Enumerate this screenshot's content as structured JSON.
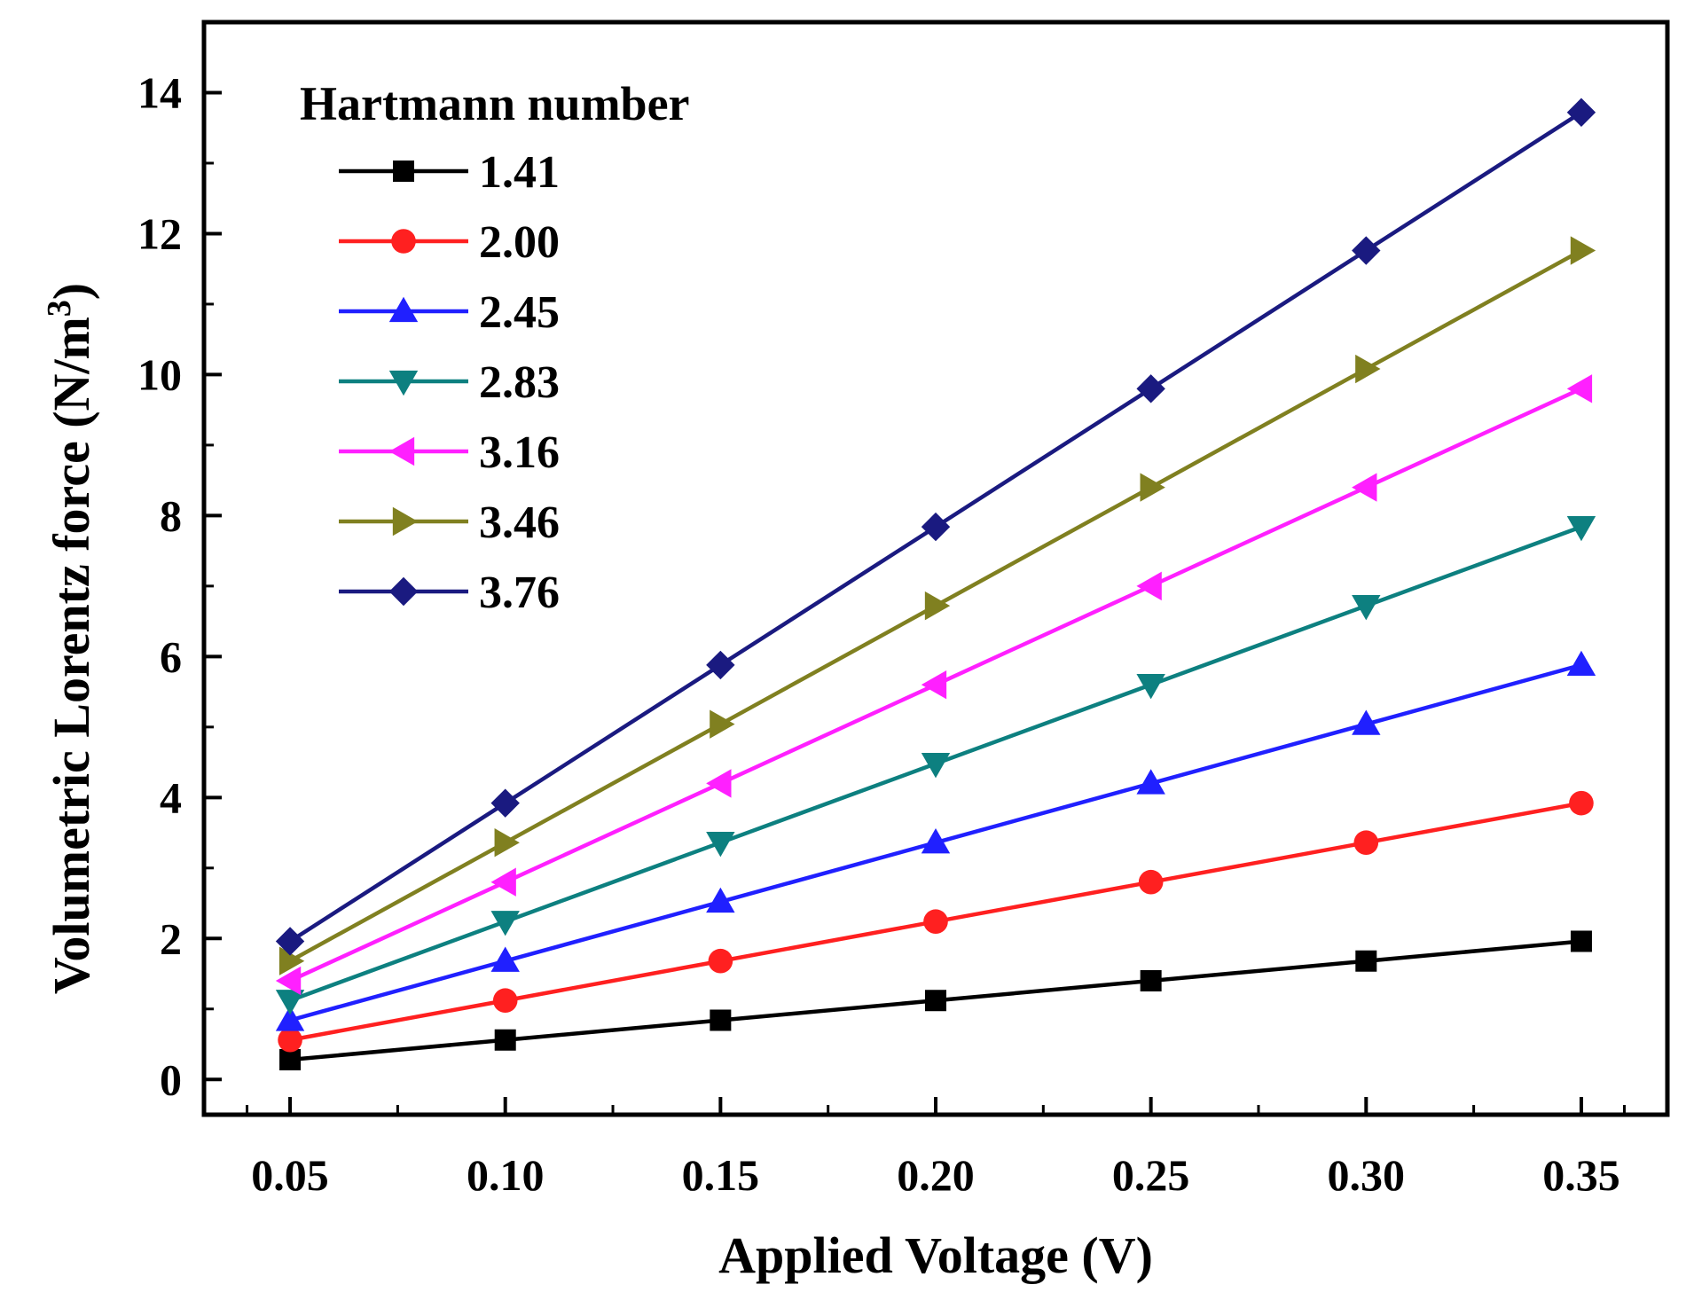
{
  "chart_data": {
    "type": "line",
    "title": "",
    "xlabel": "Applied Voltage (V)",
    "ylabel": "Volumetric Lorentz force (N/m",
    "ylabel_superscript": "3",
    "ylabel_suffix": ")",
    "xlim": [
      0.03,
      0.37
    ],
    "ylim": [
      -0.5,
      15
    ],
    "x_ticks": [
      "0.05",
      "0.10",
      "0.15",
      "0.20",
      "0.25",
      "0.30",
      "0.35"
    ],
    "y_ticks": [
      "0",
      "2",
      "4",
      "6",
      "8",
      "10",
      "12",
      "14"
    ],
    "grid": false,
    "legend_title": "Hartmann number",
    "legend_position": "top-left",
    "x": [
      0.05,
      0.1,
      0.15,
      0.2,
      0.25,
      0.3,
      0.35
    ],
    "series": [
      {
        "name": "1.41",
        "color": "#000000",
        "marker": "square",
        "values": [
          0.28,
          0.56,
          0.84,
          1.12,
          1.4,
          1.68,
          1.96
        ]
      },
      {
        "name": "2.00",
        "color": "#ff2020",
        "marker": "circle",
        "values": [
          0.56,
          1.12,
          1.68,
          2.24,
          2.8,
          3.36,
          3.92
        ]
      },
      {
        "name": "2.45",
        "color": "#2020ff",
        "marker": "triangle-up",
        "values": [
          0.84,
          1.68,
          2.52,
          3.36,
          4.2,
          5.04,
          5.88
        ]
      },
      {
        "name": "2.83",
        "color": "#0d8080",
        "marker": "triangle-down",
        "values": [
          1.12,
          2.24,
          3.36,
          4.48,
          5.6,
          6.72,
          7.84
        ]
      },
      {
        "name": "3.16",
        "color": "#ff20ff",
        "marker": "triangle-left",
        "values": [
          1.4,
          2.8,
          4.2,
          5.6,
          7.0,
          8.4,
          9.8
        ]
      },
      {
        "name": "3.46",
        "color": "#808020",
        "marker": "triangle-right",
        "values": [
          1.68,
          3.36,
          5.04,
          6.72,
          8.4,
          10.08,
          11.76
        ]
      },
      {
        "name": "3.76",
        "color": "#1a1a80",
        "marker": "diamond",
        "values": [
          1.96,
          3.92,
          5.88,
          7.84,
          9.8,
          11.76,
          13.72
        ]
      }
    ]
  }
}
